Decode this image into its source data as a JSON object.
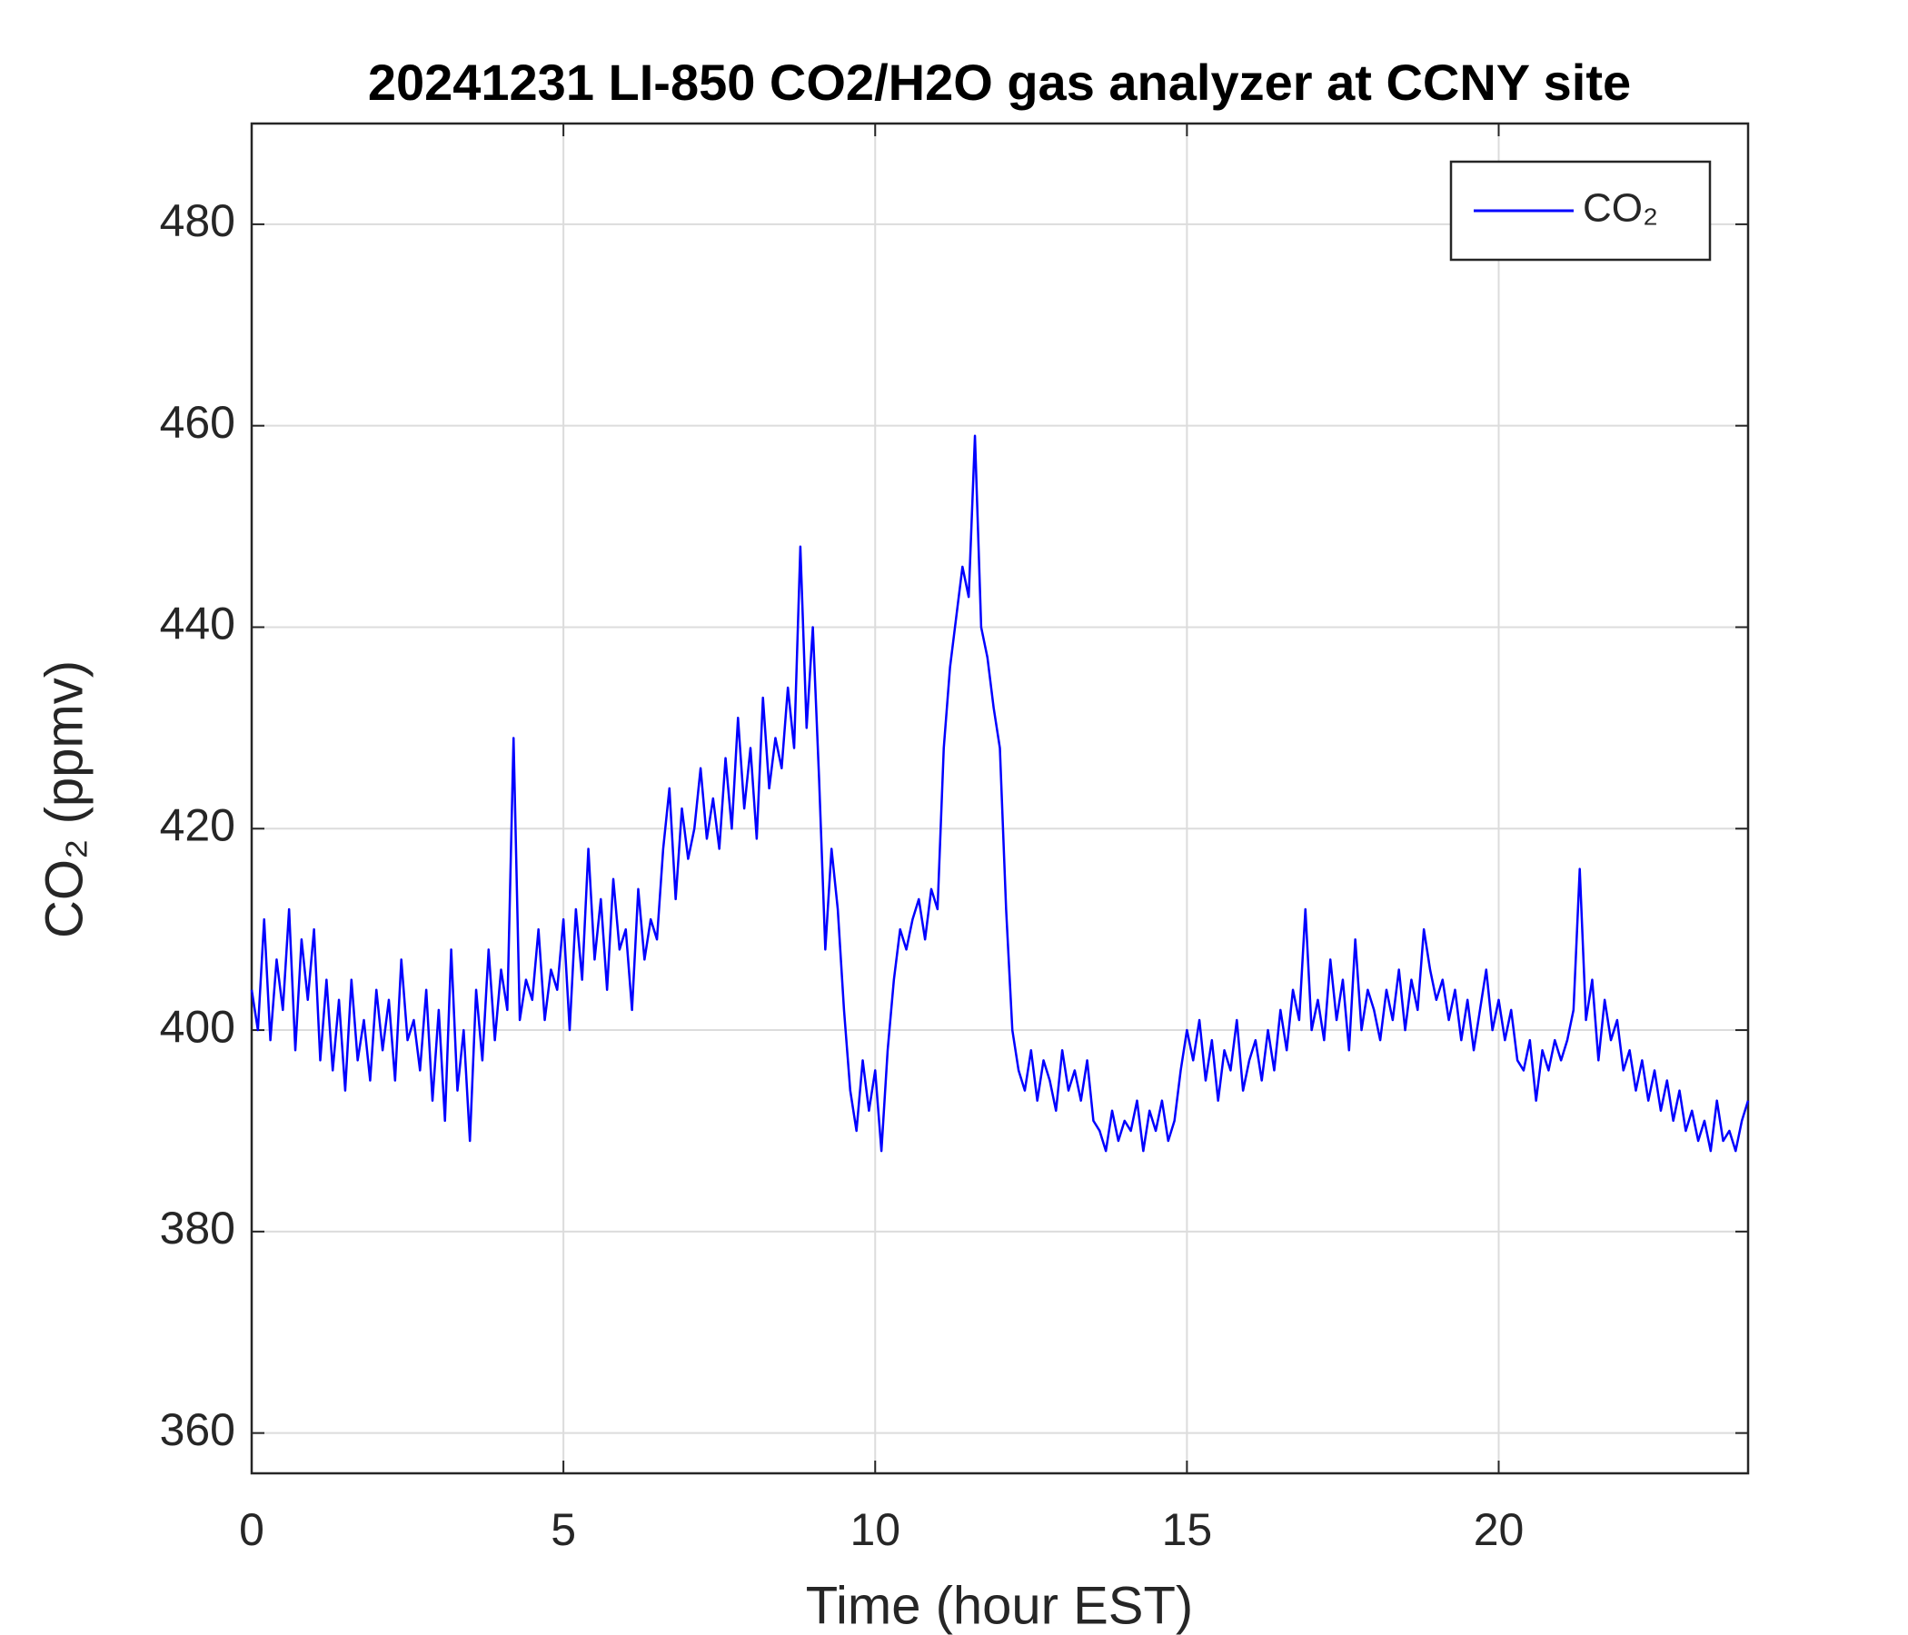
{
  "chart_data": {
    "type": "line",
    "title": "20241231 LI-850 CO2/H2O gas analyzer at CCNY site",
    "xlabel": "Time (hour EST)",
    "ylabel": "CO₂ (ppmv)",
    "xlim": [
      0,
      24
    ],
    "xticks": [
      0,
      5,
      10,
      15,
      20
    ],
    "ylim": [
      356,
      490
    ],
    "yticks": [
      360,
      380,
      400,
      420,
      440,
      460,
      480
    ],
    "grid": true,
    "legend": "upper right",
    "x": [
      0,
      0.1,
      0.2,
      0.3,
      0.4,
      0.5,
      0.6,
      0.7,
      0.8,
      0.9,
      1,
      1.1,
      1.2,
      1.3,
      1.4,
      1.5,
      1.6,
      1.7,
      1.8,
      1.9,
      2,
      2.1,
      2.2,
      2.3,
      2.4,
      2.5,
      2.6,
      2.7,
      2.8,
      2.9,
      3,
      3.1,
      3.2,
      3.3,
      3.4,
      3.5,
      3.6,
      3.7,
      3.8,
      3.9,
      4,
      4.1,
      4.2,
      4.3,
      4.4,
      4.5,
      4.6,
      4.7,
      4.8,
      4.9,
      5,
      5.1,
      5.2,
      5.3,
      5.4,
      5.5,
      5.6,
      5.7,
      5.8,
      5.9,
      6,
      6.1,
      6.2,
      6.3,
      6.4,
      6.5,
      6.6,
      6.7,
      6.8,
      6.9,
      7,
      7.1,
      7.2,
      7.3,
      7.4,
      7.5,
      7.6,
      7.7,
      7.8,
      7.9,
      8,
      8.1,
      8.2,
      8.3,
      8.4,
      8.5,
      8.6,
      8.7,
      8.8,
      8.9,
      9,
      9.1,
      9.2,
      9.3,
      9.4,
      9.5,
      9.6,
      9.7,
      9.8,
      9.9,
      10,
      10.1,
      10.2,
      10.3,
      10.4,
      10.5,
      10.6,
      10.7,
      10.8,
      10.9,
      11,
      11.1,
      11.2,
      11.3,
      11.4,
      11.5,
      11.6,
      11.7,
      11.8,
      11.9,
      12,
      12.1,
      12.2,
      12.3,
      12.4,
      12.5,
      12.6,
      12.7,
      12.8,
      12.9,
      13,
      13.1,
      13.2,
      13.3,
      13.4,
      13.5,
      13.6,
      13.7,
      13.8,
      13.9,
      14,
      14.1,
      14.2,
      14.3,
      14.4,
      14.5,
      14.6,
      14.7,
      14.8,
      14.9,
      15,
      15.1,
      15.2,
      15.3,
      15.4,
      15.5,
      15.6,
      15.7,
      15.8,
      15.9,
      16,
      16.1,
      16.2,
      16.3,
      16.4,
      16.5,
      16.6,
      16.7,
      16.8,
      16.9,
      17,
      17.1,
      17.2,
      17.3,
      17.4,
      17.5,
      17.6,
      17.7,
      17.8,
      17.9,
      18,
      18.1,
      18.2,
      18.3,
      18.4,
      18.5,
      18.6,
      18.7,
      18.8,
      18.9,
      19,
      19.1,
      19.2,
      19.3,
      19.4,
      19.5,
      19.6,
      19.7,
      19.8,
      19.9,
      20,
      20.1,
      20.2,
      20.3,
      20.4,
      20.5,
      20.6,
      20.7,
      20.8,
      20.9,
      21,
      21.1,
      21.2,
      21.3,
      21.4,
      21.5,
      21.6,
      21.7,
      21.8,
      21.9,
      22,
      22.1,
      22.2,
      22.3,
      22.4,
      22.5,
      22.6,
      22.7,
      22.8,
      22.9,
      23,
      23.1,
      23.2,
      23.3,
      23.4,
      23.5,
      23.6,
      23.7,
      23.8,
      23.9,
      24
    ],
    "series": [
      {
        "name": "CO₂",
        "color": "#0000ff",
        "values": [
          404,
          400,
          411,
          399,
          407,
          402,
          412,
          398,
          409,
          403,
          410,
          397,
          405,
          396,
          403,
          394,
          405,
          397,
          401,
          395,
          404,
          398,
          403,
          395,
          407,
          399,
          401,
          396,
          404,
          393,
          402,
          391,
          408,
          394,
          400,
          389,
          404,
          397,
          408,
          399,
          406,
          402,
          429,
          401,
          405,
          403,
          410,
          401,
          406,
          404,
          411,
          400,
          412,
          405,
          418,
          407,
          413,
          404,
          415,
          408,
          410,
          402,
          414,
          407,
          411,
          409,
          418,
          424,
          413,
          422,
          417,
          420,
          426,
          419,
          423,
          418,
          427,
          420,
          431,
          422,
          428,
          419,
          433,
          424,
          429,
          426,
          434,
          428,
          448,
          430,
          440,
          425,
          408,
          418,
          412,
          402,
          394,
          390,
          397,
          392,
          396,
          388,
          398,
          405,
          410,
          408,
          411,
          413,
          409,
          414,
          412,
          428,
          436,
          441,
          446,
          443,
          459,
          440,
          437,
          432,
          428,
          412,
          400,
          396,
          394,
          398,
          393,
          397,
          395,
          392,
          398,
          394,
          396,
          393,
          397,
          391,
          390,
          388,
          392,
          389,
          391,
          390,
          393,
          388,
          392,
          390,
          393,
          389,
          391,
          396,
          400,
          397,
          401,
          395,
          399,
          393,
          398,
          396,
          401,
          394,
          397,
          399,
          395,
          400,
          396,
          402,
          398,
          404,
          401,
          412,
          400,
          403,
          399,
          407,
          401,
          405,
          398,
          409,
          400,
          404,
          402,
          399,
          404,
          401,
          406,
          400,
          405,
          402,
          410,
          406,
          403,
          405,
          401,
          404,
          399,
          403,
          398,
          402,
          406,
          400,
          403,
          399,
          402,
          397,
          396,
          399,
          393,
          398,
          396,
          399,
          397,
          399,
          402,
          416,
          401,
          405,
          397,
          403,
          399,
          401,
          396,
          398,
          394,
          397,
          393,
          396,
          392,
          395,
          391,
          394,
          390,
          392,
          389,
          391,
          388,
          393,
          389,
          390,
          388,
          391,
          393
        ]
      }
    ]
  }
}
